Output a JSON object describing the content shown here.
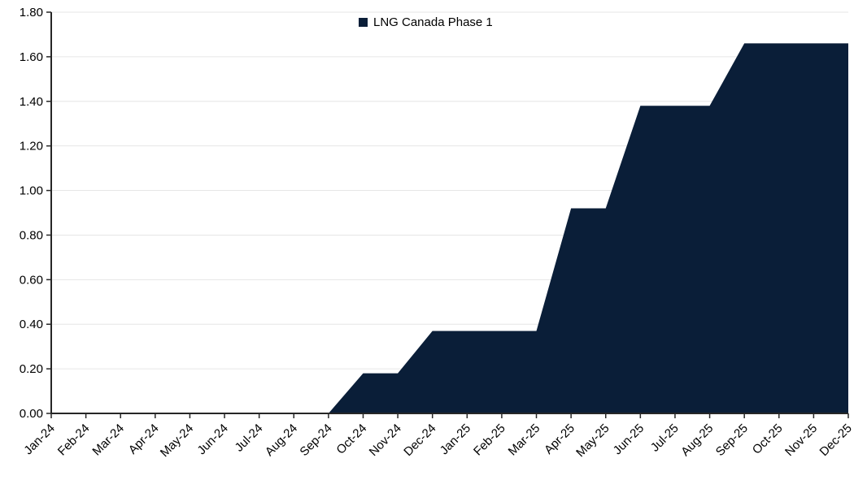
{
  "chart_data": {
    "type": "area",
    "title": "",
    "xlabel": "",
    "ylabel": "",
    "categories": [
      "Jan-24",
      "Feb-24",
      "Mar-24",
      "Apr-24",
      "May-24",
      "Jun-24",
      "Jul-24",
      "Aug-24",
      "Sep-24",
      "Oct-24",
      "Nov-24",
      "Dec-24",
      "Jan-25",
      "Feb-25",
      "Mar-25",
      "Apr-25",
      "May-25",
      "Jun-25",
      "Jul-25",
      "Aug-25",
      "Sep-25",
      "Oct-25",
      "Nov-25",
      "Dec-25"
    ],
    "series": [
      {
        "name": "LNG Canada Phase 1",
        "color": "#0A1E38",
        "values": [
          0,
          0,
          0,
          0,
          0,
          0,
          0,
          0,
          0,
          0.18,
          0.18,
          0.37,
          0.37,
          0.37,
          0.37,
          0.92,
          0.92,
          1.38,
          1.38,
          1.38,
          1.66,
          1.66,
          1.66,
          1.66
        ]
      }
    ],
    "ylim": [
      0,
      1.8
    ],
    "ytick_step": 0.2,
    "yticks": [
      "0.00",
      "0.20",
      "0.40",
      "0.60",
      "0.80",
      "1.00",
      "1.20",
      "1.40",
      "1.60",
      "1.80"
    ],
    "grid": true,
    "legend": {
      "position": "top-center",
      "marker": "square",
      "entries": [
        "LNG Canada Phase 1"
      ]
    },
    "colors": {
      "area": "#0A1E38",
      "gridline": "#E6E6E6",
      "axis": "#262626",
      "text": "#000000",
      "background": "#FFFFFF"
    }
  }
}
